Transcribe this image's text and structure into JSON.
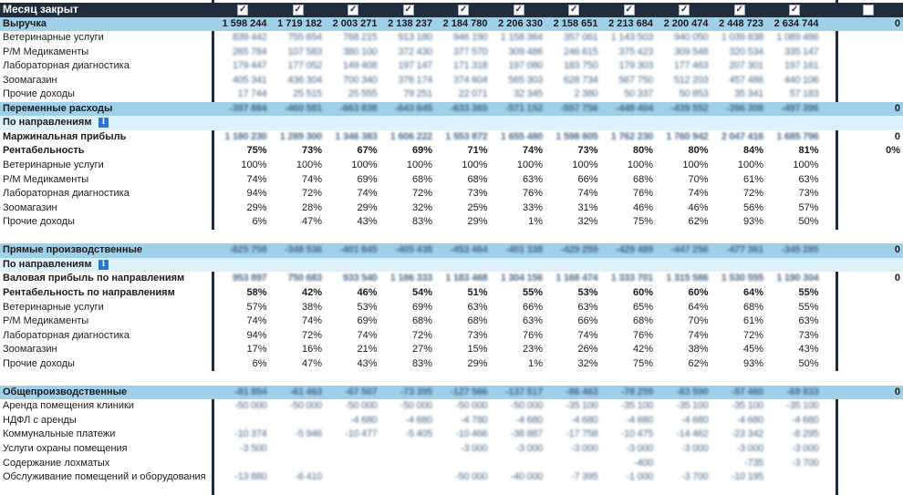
{
  "header": {
    "title": "Месяц закрыт",
    "checkboxes": [
      true,
      true,
      true,
      true,
      true,
      true,
      true,
      true,
      true,
      true,
      true,
      false
    ]
  },
  "rows": [
    {
      "type": "sec",
      "label": "Выручка",
      "cells": [
        "1 598 244",
        "1 719 182",
        "2 003 271",
        "2 138 237",
        "2 184 780",
        "2 206 330",
        "2 158 651",
        "2 213 684",
        "2 200 474",
        "2 448 723",
        "2 634 744"
      ],
      "tot": "0"
    },
    {
      "type": "blur",
      "label": "Ветеринарные услуги",
      "cells": [
        "839 442",
        "755 654",
        "768 215",
        "913 180",
        "946 190",
        "1 158 364",
        "357 061",
        "1 143 503",
        "940 050",
        "1 039 838",
        "1 089 486"
      ],
      "tot": ""
    },
    {
      "type": "blur",
      "label": "Р/М Медикаменты",
      "cells": [
        "265 784",
        "107 583",
        "380 100",
        "372 430",
        "377 570",
        "309 486",
        "246 615",
        "375 423",
        "309 548",
        "320 534",
        "335 147"
      ],
      "tot": ""
    },
    {
      "type": "blur",
      "label": "Лабораторная диагностика",
      "cells": [
        "179 447",
        "177 052",
        "149 408",
        "197 147",
        "171 318",
        "197 080",
        "183 750",
        "179 303",
        "177 463",
        "207 301",
        "197 161"
      ],
      "tot": ""
    },
    {
      "type": "blur",
      "label": "Зоомагазин",
      "cells": [
        "405 341",
        "436 304",
        "700 340",
        "376 174",
        "374 604",
        "565 303",
        "628 734",
        "567 750",
        "512 203",
        "457 486",
        "440 106"
      ],
      "tot": ""
    },
    {
      "type": "blur",
      "label": "Прочие доходы",
      "cells": [
        "17 744",
        "25 515",
        "25 555",
        "79 251",
        "22 071",
        "32 345",
        "2 380",
        "50 337",
        "50 853",
        "35 341",
        "57 183"
      ],
      "tot": ""
    },
    {
      "type": "sec",
      "label": "Переменные расходы",
      "cells": [
        "-397 884",
        "-460 581",
        "-663 838",
        "-643 645",
        "-633 365",
        "-571 152",
        "-557 756",
        "-448 404",
        "-439 552",
        "-396 308",
        "-497 396"
      ],
      "tot": "0",
      "blur": true
    },
    {
      "type": "sub",
      "label": "По направлениям",
      "info": true,
      "cells": [
        "",
        "",
        "",
        "",
        "",
        "",
        "",
        "",
        "",
        "",
        ""
      ],
      "tot": ""
    },
    {
      "type": "bold",
      "label": "Маржинальная прибыль",
      "cells": [
        "1 180 230",
        "1 289 300",
        "1 346 383",
        "1 606 222",
        "1 553 872",
        "1 655 480",
        "1 598 805",
        "1 762 230",
        "1 760 942",
        "2 047 416",
        "1 685 796"
      ],
      "tot": "0",
      "blur": true
    },
    {
      "type": "bold",
      "label": "Рентабельность",
      "cells": [
        "75%",
        "73%",
        "67%",
        "69%",
        "71%",
        "74%",
        "73%",
        "80%",
        "80%",
        "84%",
        "81%"
      ],
      "tot": "0%"
    },
    {
      "type": "plain",
      "label": "Ветеринарные услуги",
      "cells": [
        "100%",
        "100%",
        "100%",
        "100%",
        "100%",
        "100%",
        "100%",
        "100%",
        "100%",
        "100%",
        "100%"
      ],
      "tot": ""
    },
    {
      "type": "plain",
      "label": "Р/М Медикаменты",
      "cells": [
        "74%",
        "74%",
        "69%",
        "68%",
        "68%",
        "63%",
        "66%",
        "68%",
        "70%",
        "61%",
        "63%"
      ],
      "tot": ""
    },
    {
      "type": "plain",
      "label": "Лабораторная диагностика",
      "cells": [
        "94%",
        "72%",
        "74%",
        "72%",
        "73%",
        "76%",
        "74%",
        "76%",
        "74%",
        "72%",
        "73%"
      ],
      "tot": ""
    },
    {
      "type": "plain",
      "label": "Зоомагазин",
      "cells": [
        "29%",
        "28%",
        "29%",
        "32%",
        "25%",
        "33%",
        "31%",
        "46%",
        "46%",
        "56%",
        "57%"
      ],
      "tot": ""
    },
    {
      "type": "plain",
      "label": "Прочие доходы",
      "cells": [
        "6%",
        "47%",
        "43%",
        "83%",
        "29%",
        "1%",
        "32%",
        "75%",
        "62%",
        "93%",
        "50%"
      ],
      "tot": ""
    },
    {
      "type": "gap",
      "label": "",
      "cells": [],
      "tot": ""
    },
    {
      "type": "sec",
      "label": "Прямые производственные",
      "cells": [
        "-625 758",
        "-348 536",
        "-401 845",
        "-405 438",
        "-453 464",
        "-401 338",
        "-429 259",
        "-429 489",
        "-447 256",
        "-477 361",
        "-345 285"
      ],
      "tot": "0",
      "blur": true
    },
    {
      "type": "sub",
      "label": "По направлениям",
      "info": true,
      "cells": [
        "",
        "",
        "",
        "",
        "",
        "",
        "",
        "",
        "",
        "",
        ""
      ],
      "tot": ""
    },
    {
      "type": "bold",
      "label": "Валовая прибыль по направлениям",
      "cells": [
        "953 897",
        "750 683",
        "933 540",
        "1 186 333",
        "1 183 468",
        "1 304 156",
        "1 168 474",
        "1 333 701",
        "1 315 586",
        "1 530 555",
        "1 190 304"
      ],
      "tot": "0",
      "blur": true
    },
    {
      "type": "bold",
      "label": "Рентабельность по направлениям",
      "cells": [
        "58%",
        "42%",
        "46%",
        "54%",
        "51%",
        "55%",
        "53%",
        "60%",
        "60%",
        "64%",
        "55%"
      ],
      "tot": ""
    },
    {
      "type": "plain",
      "label": "Ветеринарные услуги",
      "cells": [
        "57%",
        "38%",
        "53%",
        "69%",
        "63%",
        "66%",
        "63%",
        "65%",
        "64%",
        "68%",
        "55%"
      ],
      "tot": ""
    },
    {
      "type": "plain",
      "label": "Р/М Медикаменты",
      "cells": [
        "74%",
        "74%",
        "69%",
        "68%",
        "68%",
        "63%",
        "66%",
        "68%",
        "70%",
        "61%",
        "63%"
      ],
      "tot": ""
    },
    {
      "type": "plain",
      "label": "Лабораторная диагностика",
      "cells": [
        "94%",
        "72%",
        "74%",
        "72%",
        "73%",
        "76%",
        "74%",
        "76%",
        "74%",
        "72%",
        "73%"
      ],
      "tot": ""
    },
    {
      "type": "plain",
      "label": "Зоомагазин",
      "cells": [
        "17%",
        "16%",
        "21%",
        "27%",
        "15%",
        "23%",
        "26%",
        "42%",
        "38%",
        "45%",
        "43%"
      ],
      "tot": ""
    },
    {
      "type": "plain",
      "label": "Прочие доходы",
      "cells": [
        "6%",
        "47%",
        "43%",
        "83%",
        "29%",
        "1%",
        "32%",
        "75%",
        "62%",
        "93%",
        "50%"
      ],
      "tot": ""
    },
    {
      "type": "gap",
      "label": "",
      "cells": [],
      "tot": ""
    },
    {
      "type": "sec",
      "label": "Общепроизводственные",
      "cells": [
        "-81 854",
        "-61 463",
        "-67 507",
        "-73 395",
        "-127 566",
        "-137 517",
        "-86 463",
        "-78 259",
        "-83 590",
        "-97 460",
        "-69 833"
      ],
      "tot": "0",
      "blur": true
    },
    {
      "type": "blur",
      "label": "Аренда помещения клиники",
      "cells": [
        "-50 000",
        "-50 000",
        "-50 000",
        "-50 000",
        "-50 000",
        "-50 000",
        "-35 100",
        "-35 100",
        "-35 100",
        "-35 100",
        "-35 100"
      ],
      "tot": ""
    },
    {
      "type": "blur",
      "label": "НДФЛ с аренды",
      "cells": [
        "",
        "",
        "-4 680",
        "-4 680",
        "-4 780",
        "-4 680",
        "-4 680",
        "-4 680",
        "-4 680",
        "-4 680",
        "-4 680"
      ],
      "tot": ""
    },
    {
      "type": "blur",
      "label": "Коммунальные платежи",
      "cells": [
        "-10 374",
        "-5 946",
        "-10 477",
        "-5 405",
        "-10 466",
        "-38 887",
        "-17 758",
        "-10 475",
        "-14 462",
        "-23 342",
        "-8 295"
      ],
      "tot": ""
    },
    {
      "type": "blur",
      "label": "Услуги охраны помещения",
      "cells": [
        "-3 500",
        "",
        "",
        "",
        "-3 000",
        "-3 000",
        "-3 000",
        "-3 000",
        "-3 000",
        "-3 000",
        "-3 000"
      ],
      "tot": ""
    },
    {
      "type": "blur",
      "label": "Содержание лохматых",
      "cells": [
        "",
        "",
        "",
        "",
        "",
        "",
        "",
        "-400",
        "",
        "-735",
        "-3 700"
      ],
      "tot": ""
    },
    {
      "type": "blur",
      "label": "Обслуживание помещений и оборудования",
      "cells": [
        "-13 880",
        "-6 410",
        "",
        "",
        "-50 000",
        "-40 000",
        "-7 395",
        "-1 000",
        "-3 700",
        "-10 195",
        ""
      ],
      "tot": ""
    }
  ]
}
